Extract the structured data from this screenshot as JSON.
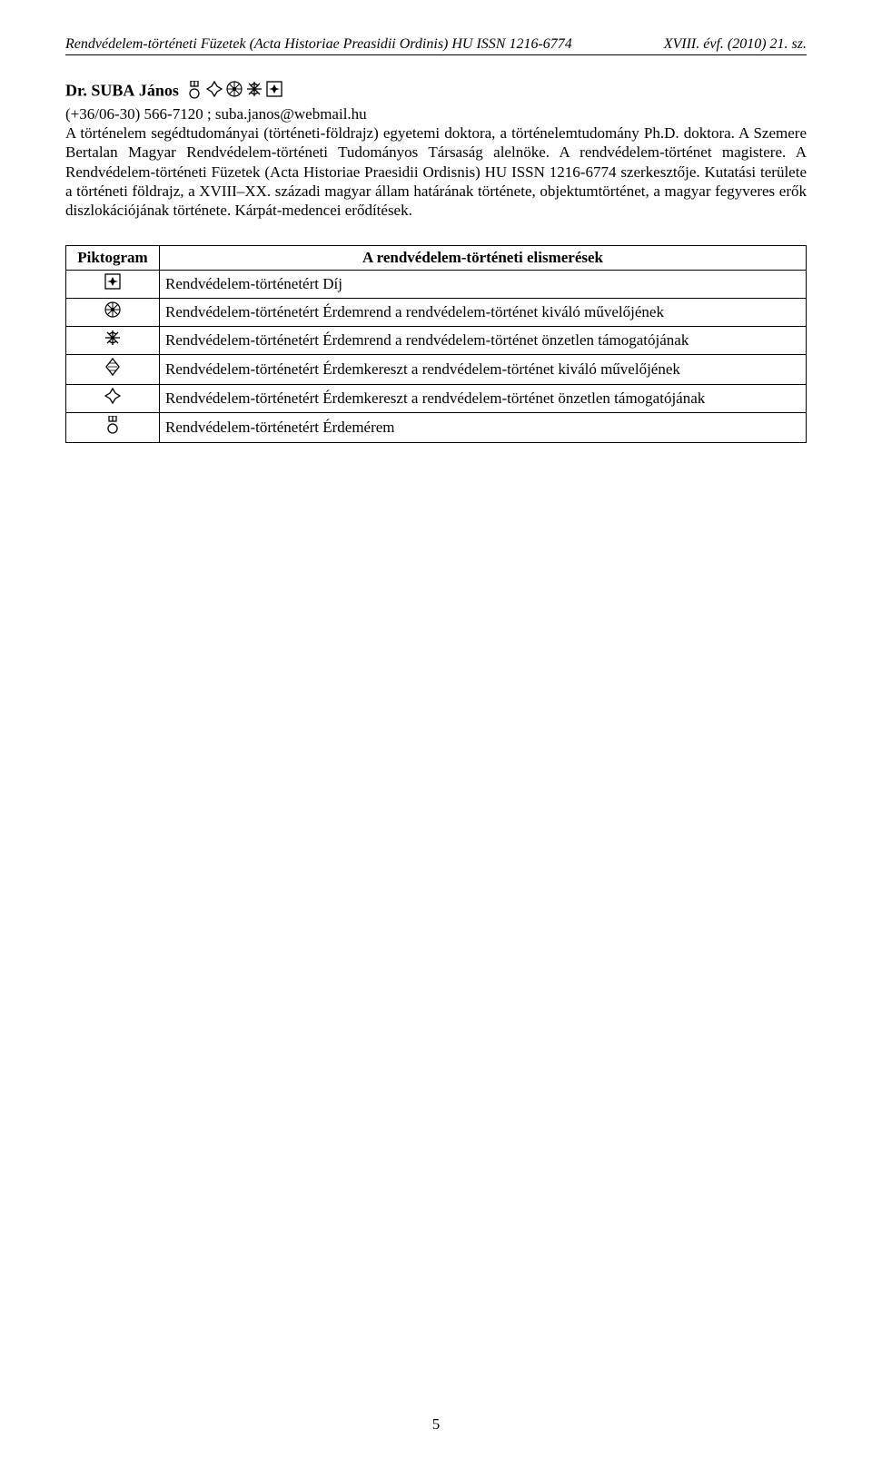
{
  "header": {
    "left": "Rendvédelem-történeti Füzetek (Acta Historiae Preasidii Ordinis) HU ISSN 1216-6774",
    "right": "XVIII. évf. (2010) 21. sz."
  },
  "author": {
    "prefix": "Dr.",
    "surname": "SUBA",
    "firstname": "János",
    "icons": [
      "medal",
      "cross",
      "rosette",
      "starburst",
      "plaque"
    ],
    "contact": "(+36/06-30) 566-7120 ; suba.janos@webmail.hu",
    "bio": "A történelem segédtudományai (történeti-földrajz) egyetemi doktora, a történelemtudomány Ph.D. doktora. A Szemere Bertalan Magyar Rendvédelem-történeti Tudományos Társaság alelnöke. A rendvédelem-történet magistere. A Rendvédelem-történeti Füzetek (Acta Historiae Praesidii Ordisnis) HU ISSN 1216-6774 szerkesztője. Kutatási területe a történeti földrajz, a XVIII–XX. századi magyar állam határának története, objektumtörténet, a magyar fegyveres erők diszlokációjának története. Kárpát-medencei erődítések."
  },
  "awards": {
    "header_picto": "Piktogram",
    "header_desc": "A rendvédelem-történeti elismerések",
    "rows": [
      {
        "icon": "plaque",
        "text": "Rendvédelem-történetért Díj"
      },
      {
        "icon": "rosette",
        "text": "Rendvédelem-történetért Érdemrend a rendvédelem-történet kiváló művelőjének"
      },
      {
        "icon": "starburst",
        "text": "Rendvédelem-történetért Érdemrend a rendvédelem-történet önzetlen támogatójának"
      },
      {
        "icon": "diamond",
        "text": "Rendvédelem-történetért Érdemkereszt a rendvédelem-történet kiváló művelőjének"
      },
      {
        "icon": "cross",
        "text": "Rendvédelem-történetért Érdemkereszt a rendvédelem-történet önzetlen támogatójának"
      },
      {
        "icon": "medal",
        "text": "Rendvédelem-történetért Érdemérem"
      }
    ]
  },
  "page_number": "5",
  "icons_svg": {
    "medal": "<svg width='18' height='20' viewBox='0 0 18 20'><rect x='5' y='0' width='8' height='6' fill='none' stroke='#000' stroke-width='1.3'/><line x1='9' y1='0' x2='9' y2='6' stroke='#000' stroke-width='1.3'/><circle cx='9' cy='14' r='5' fill='none' stroke='#000' stroke-width='1.3'/></svg>",
    "cross": "<svg width='18' height='18' viewBox='0 0 18 18'><path d='M9 1 L12 6 L17 9 L12 12 L9 17 L6 12 L1 9 L6 6 Z' fill='none' stroke='#000' stroke-width='1.3'/></svg>",
    "rosette": "<svg width='18' height='18' viewBox='0 0 18 18'><circle cx='9' cy='9' r='8' fill='none' stroke='#000' stroke-width='1.2'/><g stroke='#000' stroke-width='1'><line x1='9' y1='1' x2='9' y2='17'/><line x1='1' y1='9' x2='17' y2='9'/><line x1='3' y1='3' x2='15' y2='15'/><line x1='15' y1='3' x2='3' y2='15'/></g><circle cx='9' cy='9' r='2' fill='#000'/></svg>",
    "starburst": "<svg width='18' height='18' viewBox='0 0 18 18'><g stroke='#000' stroke-width='1.3'><line x1='9' y1='1' x2='9' y2='17'/><line x1='1' y1='9' x2='17' y2='9'/><line x1='3' y1='3' x2='15' y2='15'/><line x1='15' y1='3' x2='3' y2='15'/><line x1='9' y1='3' x2='13' y2='5'/><line x1='9' y1='3' x2='5' y2='5'/><line x1='9' y1='15' x2='13' y2='13'/><line x1='9' y1='15' x2='5' y2='13'/></g></svg>",
    "plaque": "<svg width='18' height='18' viewBox='0 0 18 18'><rect x='1' y='1' width='16' height='16' fill='none' stroke='#000' stroke-width='1.3'/><path d='M9 4 L11 8 L15 9 L11 10 L9 14 L7 10 L3 9 L7 8 Z' fill='#000'/></svg>",
    "diamond": "<svg width='16' height='20' viewBox='0 0 16 20'><polygon points='8,1 15,10 8,19 1,10' fill='none' stroke='#000' stroke-width='1.3'/><g stroke='#000' stroke-width='0.8'><line x1='4' y1='6' x2='12' y2='6'/><line x1='3' y1='10' x2='13' y2='10'/><line x1='4' y1='14' x2='12' y2='14'/></g></svg>"
  }
}
